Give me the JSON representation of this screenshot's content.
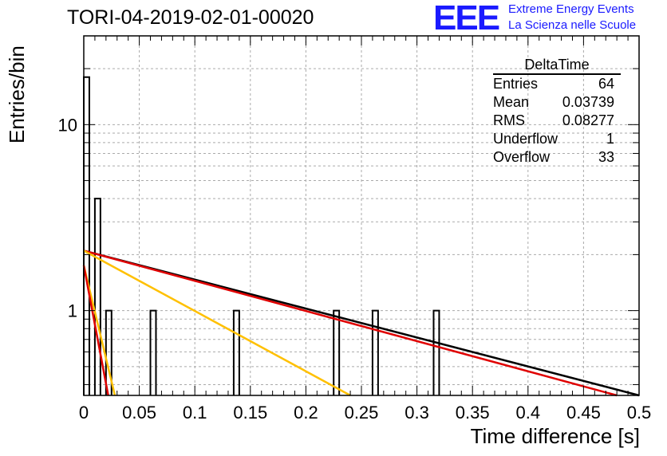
{
  "header": {
    "title": "TORI-04-2019-02-01-00020",
    "logo_text": "EEE",
    "logo_line1": "Extreme Energy Events",
    "logo_line2": "La Scienza nelle Scuole"
  },
  "stats_box": {
    "title": "DeltaTime",
    "rows": [
      {
        "label": "Entries",
        "value": "64"
      },
      {
        "label": "Mean",
        "value": "0.03739"
      },
      {
        "label": "RMS",
        "value": "0.08277"
      },
      {
        "label": "Underflow",
        "value": "1"
      },
      {
        "label": "Overflow",
        "value": "33"
      }
    ]
  },
  "colors": {
    "fit_main": "#000000",
    "fit_red": "#e00000",
    "fit_yellow": "#ffc000",
    "histogram": "#000000",
    "grid": "#aaaaaa"
  },
  "chart_data": {
    "type": "bar",
    "title": "TORI-04-2019-02-01-00020",
    "xlabel": "Time difference [s]",
    "ylabel": "Entries/bin",
    "x_scale": "linear",
    "y_scale": "log",
    "xlim": [
      0,
      0.5
    ],
    "ylim": [
      0.35,
      30
    ],
    "grid": true,
    "x_ticks": [
      "0",
      "0.05",
      "0.1",
      "0.15",
      "0.2",
      "0.25",
      "0.3",
      "0.35",
      "0.4",
      "0.45",
      "0.5"
    ],
    "y_ticks": [
      "1",
      "10"
    ],
    "bin_width": 0.005,
    "bins": [
      {
        "x": 0.0,
        "count": 18
      },
      {
        "x": 0.01,
        "count": 4
      },
      {
        "x": 0.02,
        "count": 1
      },
      {
        "x": 0.06,
        "count": 1
      },
      {
        "x": 0.135,
        "count": 1
      },
      {
        "x": 0.225,
        "count": 1
      },
      {
        "x": 0.26,
        "count": 1
      },
      {
        "x": 0.315,
        "count": 1
      }
    ],
    "fits": [
      {
        "color": "#000000",
        "points": [
          [
            0.0,
            2.1
          ],
          [
            0.5,
            0.35
          ]
        ]
      },
      {
        "color": "#e00000",
        "points": [
          [
            0.0,
            2.1
          ],
          [
            0.48,
            0.35
          ]
        ]
      },
      {
        "color": "#ffc000",
        "points": [
          [
            0.0,
            2.1
          ],
          [
            0.24,
            0.35
          ]
        ]
      },
      {
        "color": "#ffc000",
        "points": [
          [
            0.0,
            1.75
          ],
          [
            0.028,
            0.35
          ]
        ]
      },
      {
        "color": "#e00000",
        "points": [
          [
            0.0,
            1.75
          ],
          [
            0.022,
            0.35
          ]
        ]
      }
    ]
  }
}
